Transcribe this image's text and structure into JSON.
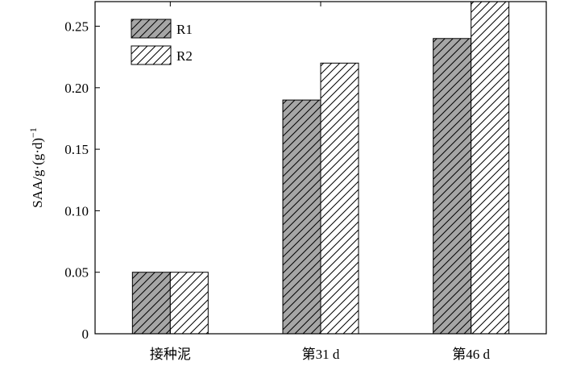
{
  "chart_data": {
    "type": "bar",
    "categories": [
      "接种泥",
      "第31 d",
      "第46 d"
    ],
    "series": [
      {
        "name": "R1",
        "values": [
          0.05,
          0.19,
          0.24
        ],
        "fill": "#a6a6a6",
        "hatch": "diagonal"
      },
      {
        "name": "R2",
        "values": [
          0.05,
          0.22,
          0.27
        ],
        "fill": "#ffffff",
        "hatch": "diagonal"
      }
    ],
    "ylabel": "SAA/g·(g·d)",
    "ylabel_superscript": "−1",
    "xlabel": "",
    "ylim": [
      0,
      0.27
    ],
    "yticks": [
      "0",
      "0.05",
      "0.10",
      "0.15",
      "0.20",
      "0.25"
    ],
    "ytick_values": [
      0,
      0.05,
      0.1,
      0.15,
      0.2,
      0.25
    ],
    "legend": {
      "position": "top-left",
      "entries": [
        "R1",
        "R2"
      ]
    },
    "grid": false
  }
}
